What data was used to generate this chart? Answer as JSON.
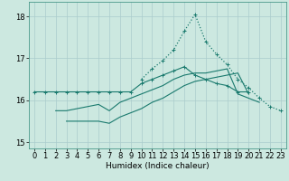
{
  "x": [
    0,
    1,
    2,
    3,
    4,
    5,
    6,
    7,
    8,
    9,
    10,
    11,
    12,
    13,
    14,
    15,
    16,
    17,
    18,
    19,
    20,
    21,
    22,
    23
  ],
  "line_top": [
    16.2,
    16.2,
    16.2,
    16.2,
    16.2,
    16.2,
    16.2,
    16.2,
    16.2,
    16.2,
    16.4,
    16.5,
    16.6,
    16.7,
    16.8,
    16.6,
    16.5,
    16.4,
    16.35,
    16.2,
    16.2,
    null,
    null,
    null
  ],
  "line_mid": [
    null,
    null,
    15.75,
    15.75,
    15.8,
    15.85,
    15.9,
    15.75,
    15.95,
    16.05,
    16.15,
    16.25,
    16.35,
    16.5,
    16.6,
    16.65,
    16.65,
    16.7,
    16.75,
    16.15,
    16.05,
    15.95,
    null,
    null
  ],
  "line_bot": [
    null,
    null,
    null,
    15.5,
    15.5,
    15.5,
    15.5,
    15.45,
    15.6,
    15.7,
    15.8,
    15.95,
    16.05,
    16.2,
    16.35,
    16.45,
    16.5,
    16.55,
    16.6,
    16.65,
    16.15,
    null,
    null,
    null
  ],
  "line_peak": [
    null,
    null,
    null,
    null,
    null,
    null,
    null,
    null,
    null,
    null,
    16.5,
    16.75,
    16.95,
    17.2,
    17.65,
    18.05,
    17.4,
    17.1,
    16.85,
    16.5,
    16.3,
    16.05,
    15.85,
    15.75
  ],
  "bg_color": "#cce8e0",
  "grid_color": "#aacccc",
  "line_color": "#1a7a6e",
  "ylim": [
    14.85,
    18.35
  ],
  "yticks": [
    15,
    16,
    17,
    18
  ],
  "xlim": [
    -0.5,
    23.5
  ],
  "xticks": [
    0,
    1,
    2,
    3,
    4,
    5,
    6,
    7,
    8,
    9,
    10,
    11,
    12,
    13,
    14,
    15,
    16,
    17,
    18,
    19,
    20,
    21,
    22,
    23
  ],
  "xlabel": "Humidex (Indice chaleur)",
  "xlabel_fontsize": 6.5,
  "tick_fontsize": 6.0
}
